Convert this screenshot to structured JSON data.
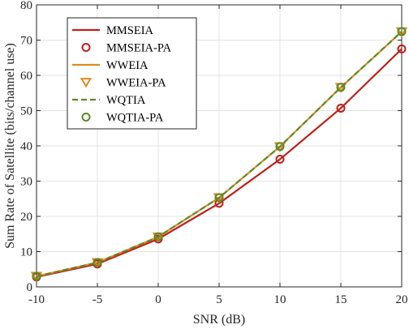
{
  "chart_data": {
    "type": "line",
    "xlabel": "SNR (dB)",
    "ylabel": "Sum Rate of Satellite (bits/channel use)",
    "x": [
      -10,
      -5,
      0,
      5,
      10,
      15,
      20
    ],
    "xlim": [
      -10,
      20
    ],
    "ylim": [
      0,
      80
    ],
    "xticks": [
      -10,
      -5,
      0,
      5,
      10,
      15,
      20
    ],
    "xtick_labels": [
      "-10",
      "-5",
      "0",
      "5",
      "10",
      "15",
      "20"
    ],
    "yticks": [
      0,
      10,
      20,
      30,
      40,
      50,
      60,
      70,
      80
    ],
    "ytick_labels": [
      "0",
      "10",
      "20",
      "30",
      "40",
      "50",
      "60",
      "70",
      "80"
    ],
    "grid": true,
    "legend_position": "top-left",
    "series": [
      {
        "name": "MMSEIA",
        "values": [
          2.8,
          6.5,
          13.6,
          23.7,
          36.2,
          50.7,
          67.5
        ],
        "color": "#c0201a",
        "style": "solid",
        "marker": "none"
      },
      {
        "name": "MMSEIA-PA",
        "values": [
          2.8,
          6.5,
          13.6,
          23.7,
          36.2,
          50.7,
          67.5
        ],
        "color": "#c0201a",
        "style": "none",
        "marker": "circle"
      },
      {
        "name": "WWEIA",
        "values": [
          3.0,
          6.9,
          14.2,
          25.3,
          39.8,
          56.6,
          72.4
        ],
        "color": "#e08a1e",
        "style": "solid",
        "marker": "none"
      },
      {
        "name": "WWEIA-PA",
        "values": [
          3.0,
          6.9,
          14.2,
          25.3,
          39.8,
          56.6,
          72.4
        ],
        "color": "#e08a1e",
        "style": "none",
        "marker": "triangle-down"
      },
      {
        "name": "WQTIA",
        "values": [
          3.0,
          6.9,
          14.2,
          25.3,
          39.8,
          56.6,
          72.4
        ],
        "color": "#5a8a2a",
        "style": "dashed",
        "marker": "none"
      },
      {
        "name": "WQTIA-PA",
        "values": [
          3.0,
          6.9,
          14.2,
          25.3,
          39.8,
          56.6,
          72.4
        ],
        "color": "#5a8a2a",
        "style": "none",
        "marker": "circle"
      }
    ]
  }
}
